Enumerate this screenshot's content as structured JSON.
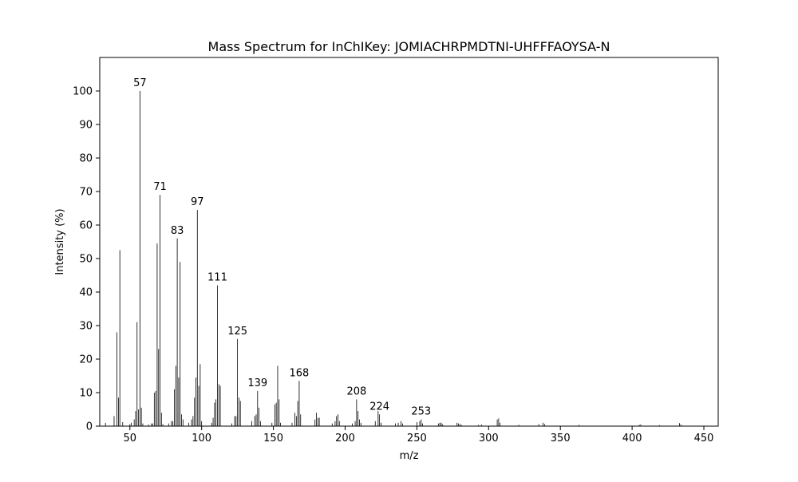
{
  "chart_data": {
    "type": "bar",
    "title": "Mass Spectrum for InChIKey: JOMIACHRPMDTNI-UHFFFAOYSA-N",
    "xlabel": "m/z",
    "ylabel": "Intensity (%)",
    "xlim": [
      29,
      460
    ],
    "ylim": [
      0,
      110
    ],
    "xticks": [
      50,
      100,
      150,
      200,
      250,
      300,
      350,
      400,
      450
    ],
    "yticks": [
      0,
      10,
      20,
      30,
      40,
      50,
      60,
      70,
      80,
      90,
      100
    ],
    "grid": false,
    "peaks": [
      [
        33,
        1.0
      ],
      [
        39,
        3.0
      ],
      [
        41,
        28.0
      ],
      [
        42,
        8.5
      ],
      [
        43,
        52.5
      ],
      [
        45,
        1.2
      ],
      [
        50,
        0.6
      ],
      [
        51,
        1.0
      ],
      [
        53,
        2.0
      ],
      [
        54,
        4.5
      ],
      [
        55,
        31.0
      ],
      [
        56,
        5.0
      ],
      [
        57,
        100.0
      ],
      [
        58,
        5.5
      ],
      [
        59,
        0.8
      ],
      [
        63,
        0.5
      ],
      [
        65,
        0.8
      ],
      [
        66,
        0.8
      ],
      [
        67,
        10.0
      ],
      [
        68,
        10.5
      ],
      [
        69,
        54.5
      ],
      [
        70,
        23.0
      ],
      [
        71,
        69.0
      ],
      [
        72,
        4.0
      ],
      [
        73,
        0.6
      ],
      [
        77,
        0.8
      ],
      [
        79,
        1.5
      ],
      [
        80,
        1.5
      ],
      [
        81,
        11.0
      ],
      [
        82,
        18.0
      ],
      [
        83,
        56.0
      ],
      [
        84,
        14.5
      ],
      [
        85,
        49.0
      ],
      [
        86,
        3.5
      ],
      [
        87,
        2.0
      ],
      [
        91,
        1.0
      ],
      [
        93,
        2.0
      ],
      [
        94,
        3.0
      ],
      [
        95,
        8.5
      ],
      [
        96,
        14.5
      ],
      [
        97,
        64.5
      ],
      [
        98,
        12.0
      ],
      [
        99,
        18.5
      ],
      [
        100,
        1.5
      ],
      [
        107,
        1.0
      ],
      [
        108,
        2.5
      ],
      [
        109,
        7.0
      ],
      [
        110,
        8.0
      ],
      [
        111,
        42.0
      ],
      [
        112,
        12.5
      ],
      [
        113,
        12.0
      ],
      [
        121,
        0.8
      ],
      [
        123,
        3.0
      ],
      [
        124,
        3.0
      ],
      [
        125,
        26.0
      ],
      [
        126,
        8.5
      ],
      [
        127,
        7.5
      ],
      [
        135,
        1.5
      ],
      [
        137,
        3.0
      ],
      [
        138,
        3.5
      ],
      [
        139,
        10.5
      ],
      [
        140,
        5.5
      ],
      [
        141,
        1.5
      ],
      [
        149,
        1.0
      ],
      [
        151,
        6.5
      ],
      [
        152,
        7.0
      ],
      [
        153,
        18.0
      ],
      [
        154,
        8.0
      ],
      [
        155,
        1.0
      ],
      [
        163,
        1.0
      ],
      [
        165,
        4.0
      ],
      [
        166,
        3.0
      ],
      [
        167,
        7.5
      ],
      [
        168,
        13.5
      ],
      [
        169,
        3.5
      ],
      [
        179,
        2.0
      ],
      [
        180,
        4.0
      ],
      [
        181,
        2.5
      ],
      [
        182,
        2.5
      ],
      [
        191,
        0.8
      ],
      [
        193,
        1.5
      ],
      [
        194,
        3.0
      ],
      [
        195,
        3.5
      ],
      [
        196,
        1.5
      ],
      [
        205,
        0.8
      ],
      [
        207,
        1.5
      ],
      [
        208,
        8.0
      ],
      [
        209,
        4.5
      ],
      [
        210,
        2.0
      ],
      [
        211,
        1.0
      ],
      [
        221,
        1.5
      ],
      [
        223,
        4.5
      ],
      [
        224,
        3.5
      ],
      [
        225,
        1.0
      ],
      [
        235,
        0.8
      ],
      [
        237,
        1.0
      ],
      [
        239,
        1.5
      ],
      [
        240,
        0.8
      ],
      [
        250,
        1.2
      ],
      [
        252,
        1.5
      ],
      [
        253,
        2.0
      ],
      [
        254,
        0.8
      ],
      [
        265,
        0.8
      ],
      [
        266,
        1.0
      ],
      [
        267,
        1.0
      ],
      [
        268,
        0.6
      ],
      [
        278,
        1.0
      ],
      [
        279,
        0.8
      ],
      [
        280,
        0.6
      ],
      [
        281,
        0.4
      ],
      [
        293,
        0.4
      ],
      [
        295,
        0.5
      ],
      [
        306,
        2.0
      ],
      [
        307,
        2.3
      ],
      [
        308,
        1.0
      ],
      [
        321,
        0.4
      ],
      [
        335,
        0.6
      ],
      [
        338,
        1.0
      ],
      [
        339,
        0.6
      ],
      [
        363,
        0.4
      ],
      [
        405,
        0.4
      ],
      [
        406,
        0.5
      ],
      [
        419,
        0.3
      ],
      [
        433,
        0.9
      ],
      [
        434,
        0.5
      ]
    ],
    "labeled_peaks": [
      {
        "x": 57,
        "y": 100.0,
        "label": "57"
      },
      {
        "x": 71,
        "y": 69.0,
        "label": "71"
      },
      {
        "x": 83,
        "y": 56.0,
        "label": "83"
      },
      {
        "x": 97,
        "y": 64.5,
        "label": "97"
      },
      {
        "x": 111,
        "y": 42.0,
        "label": "111"
      },
      {
        "x": 125,
        "y": 26.0,
        "label": "125"
      },
      {
        "x": 139,
        "y": 10.5,
        "label": "139"
      },
      {
        "x": 168,
        "y": 13.5,
        "label": "168"
      },
      {
        "x": 208,
        "y": 8.0,
        "label": "208"
      },
      {
        "x": 224,
        "y": 3.5,
        "label": "224"
      },
      {
        "x": 253,
        "y": 2.0,
        "label": "253"
      }
    ]
  }
}
